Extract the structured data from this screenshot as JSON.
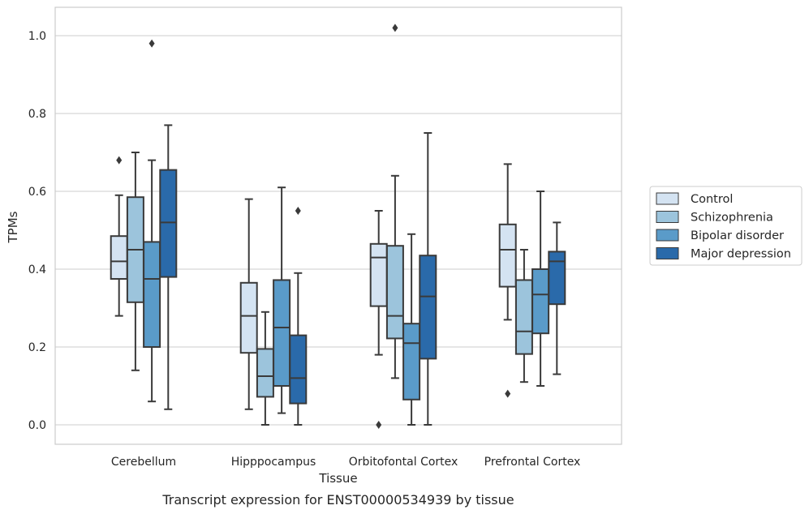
{
  "caption": "Transcript expression for ENST00000534939 by tissue",
  "chart_data": {
    "type": "box",
    "title": "",
    "xlabel": "Tissue",
    "ylabel": "TPMs",
    "ylim": [
      -0.05,
      1.07
    ],
    "yticks": [
      0.0,
      0.2,
      0.4,
      0.6,
      0.8,
      1.0
    ],
    "ytick_labels": [
      "0.0",
      "0.2",
      "0.4",
      "0.6",
      "0.8",
      "1.0"
    ],
    "grid": "horizontal",
    "legend_position": "outside-right",
    "categories": [
      "Cerebellum",
      "Hipppocampus",
      "Orbitofontal Cortex",
      "Prefrontal Cortex"
    ],
    "series": [
      {
        "name": "Control",
        "color": "#d4e3f2",
        "boxes": [
          {
            "whisker_low": 0.28,
            "q1": 0.375,
            "median": 0.42,
            "q3": 0.485,
            "whisker_high": 0.59,
            "outliers": [
              0.68
            ]
          },
          {
            "whisker_low": 0.04,
            "q1": 0.185,
            "median": 0.28,
            "q3": 0.365,
            "whisker_high": 0.58,
            "outliers": []
          },
          {
            "whisker_low": 0.18,
            "q1": 0.305,
            "median": 0.43,
            "q3": 0.465,
            "whisker_high": 0.55,
            "outliers": [
              0.0
            ]
          },
          {
            "whisker_low": 0.27,
            "q1": 0.355,
            "median": 0.45,
            "q3": 0.515,
            "whisker_high": 0.67,
            "outliers": [
              0.08
            ]
          }
        ]
      },
      {
        "name": "Schizophrenia",
        "color": "#9cc4dc",
        "boxes": [
          {
            "whisker_low": 0.14,
            "q1": 0.315,
            "median": 0.45,
            "q3": 0.585,
            "whisker_high": 0.7,
            "outliers": []
          },
          {
            "whisker_low": 0.0,
            "q1": 0.072,
            "median": 0.125,
            "q3": 0.195,
            "whisker_high": 0.29,
            "outliers": []
          },
          {
            "whisker_low": 0.12,
            "q1": 0.222,
            "median": 0.28,
            "q3": 0.46,
            "whisker_high": 0.64,
            "outliers": [
              1.02
            ]
          },
          {
            "whisker_low": 0.11,
            "q1": 0.182,
            "median": 0.24,
            "q3": 0.372,
            "whisker_high": 0.45,
            "outliers": []
          }
        ]
      },
      {
        "name": "Bipolar disorder",
        "color": "#5a9bc9",
        "boxes": [
          {
            "whisker_low": 0.06,
            "q1": 0.2,
            "median": 0.375,
            "q3": 0.47,
            "whisker_high": 0.68,
            "outliers": [
              0.98
            ]
          },
          {
            "whisker_low": 0.03,
            "q1": 0.1,
            "median": 0.25,
            "q3": 0.372,
            "whisker_high": 0.61,
            "outliers": []
          },
          {
            "whisker_low": 0.0,
            "q1": 0.065,
            "median": 0.21,
            "q3": 0.26,
            "whisker_high": 0.49,
            "outliers": []
          },
          {
            "whisker_low": 0.1,
            "q1": 0.235,
            "median": 0.335,
            "q3": 0.4,
            "whisker_high": 0.6,
            "outliers": []
          }
        ]
      },
      {
        "name": "Major depression",
        "color": "#2a6aaa",
        "boxes": [
          {
            "whisker_low": 0.04,
            "q1": 0.38,
            "median": 0.52,
            "q3": 0.655,
            "whisker_high": 0.77,
            "outliers": []
          },
          {
            "whisker_low": 0.0,
            "q1": 0.055,
            "median": 0.12,
            "q3": 0.23,
            "whisker_high": 0.39,
            "outliers": [
              0.55
            ]
          },
          {
            "whisker_low": 0.0,
            "q1": 0.17,
            "median": 0.33,
            "q3": 0.435,
            "whisker_high": 0.75,
            "outliers": []
          },
          {
            "whisker_low": 0.13,
            "q1": 0.31,
            "median": 0.42,
            "q3": 0.445,
            "whisker_high": 0.52,
            "outliers": []
          }
        ]
      }
    ]
  }
}
